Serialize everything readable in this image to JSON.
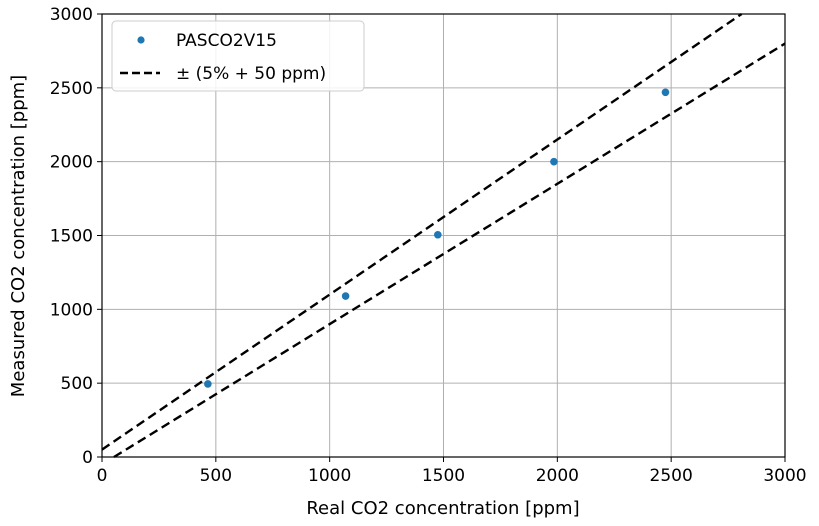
{
  "chart_data": {
    "type": "scatter",
    "xlabel": "Real CO2 concentration [ppm]",
    "ylabel": "Measured CO2 concentration [ppm]",
    "xlim": [
      0,
      3000
    ],
    "ylim": [
      0,
      3000
    ],
    "xticks": [
      0,
      500,
      1000,
      1500,
      2000,
      2500,
      3000
    ],
    "yticks": [
      0,
      500,
      1000,
      1500,
      2000,
      2500,
      3000
    ],
    "grid": true,
    "legend_position": "top-left",
    "series": [
      {
        "name": "PASCO2V15",
        "kind": "scatter",
        "color": "#1f77b4",
        "points": [
          {
            "x": 465,
            "y": 495
          },
          {
            "x": 1070,
            "y": 1090
          },
          {
            "x": 1475,
            "y": 1505
          },
          {
            "x": 1985,
            "y": 2000
          },
          {
            "x": 2475,
            "y": 2470
          }
        ]
      },
      {
        "name": "± (5% + 50 ppm)",
        "kind": "dashed-line",
        "color": "#000000",
        "lines": [
          {
            "slope": 1.05,
            "intercept": 50
          },
          {
            "slope": 0.95,
            "intercept": -50
          }
        ]
      }
    ]
  }
}
